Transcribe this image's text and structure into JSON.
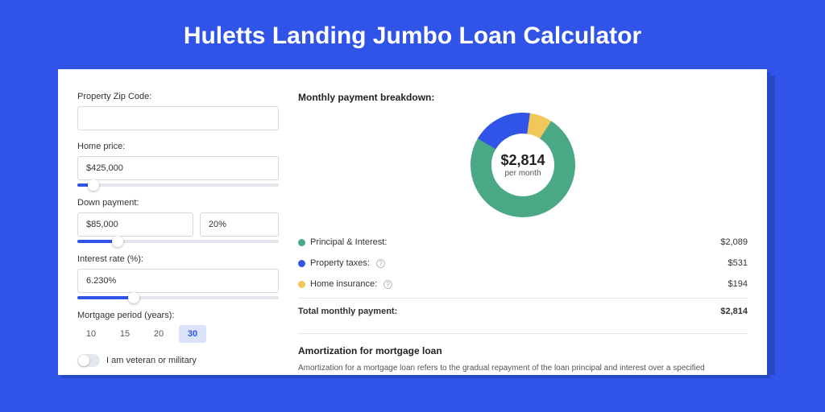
{
  "page": {
    "title": "Huletts Landing Jumbo Loan Calculator",
    "bg": "#3054e8",
    "card_bg": "#ffffff"
  },
  "form": {
    "zip": {
      "label": "Property Zip Code:",
      "value": ""
    },
    "home_price": {
      "label": "Home price:",
      "value": "$425,000",
      "slider_pct": 8
    },
    "down_payment": {
      "label": "Down payment:",
      "amount": "$85,000",
      "pct": "20%",
      "slider_pct": 20
    },
    "interest": {
      "label": "Interest rate (%):",
      "value": "6.230%",
      "slider_pct": 28
    },
    "period": {
      "label": "Mortgage period (years):",
      "options": [
        "10",
        "15",
        "20",
        "30"
      ],
      "selected": "30"
    },
    "veteran": {
      "label": "I am veteran or military",
      "checked": false
    }
  },
  "breakdown": {
    "title": "Monthly payment breakdown:",
    "center_amount": "$2,814",
    "center_sub": "per month",
    "rows": [
      {
        "label": "Principal & Interest:",
        "value": "$2,089",
        "num": 2089,
        "color": "#4aa885",
        "info": false
      },
      {
        "label": "Property taxes:",
        "value": "$531",
        "num": 531,
        "color": "#3054e8",
        "info": true
      },
      {
        "label": "Home insurance:",
        "value": "$194",
        "num": 194,
        "color": "#f0c758",
        "info": true
      }
    ],
    "total": {
      "label": "Total monthly payment:",
      "value": "$2,814"
    },
    "donut": {
      "stroke_width": 20,
      "bg": "#ffffff"
    }
  },
  "amort": {
    "title": "Amortization for mortgage loan",
    "text": "Amortization for a mortgage loan refers to the gradual repayment of the loan principal and interest over a specified"
  }
}
